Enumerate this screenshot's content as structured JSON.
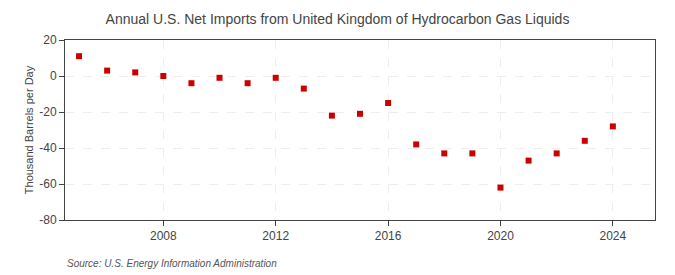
{
  "chart_data": {
    "type": "scatter",
    "title": "Annual U.S. Net Imports from United Kingdom of Hydrocarbon Gas Liquids",
    "ylabel": "Thousand Barrels per Day",
    "annotations": [
      "Source: U.S. Energy Information Administration"
    ],
    "x": [
      2005,
      2006,
      2007,
      2008,
      2009,
      2010,
      2011,
      2012,
      2013,
      2014,
      2015,
      2016,
      2017,
      2018,
      2019,
      2020,
      2021,
      2022,
      2023,
      2024
    ],
    "values": [
      11,
      3,
      2,
      0,
      -4,
      -1,
      -4,
      -1,
      -7,
      -22,
      -21,
      -15,
      -38,
      -43,
      -43,
      -62,
      -47,
      -43,
      -36,
      -28
    ],
    "color": "#cc0000",
    "marker": "square",
    "xlim": [
      2004.5,
      2025.5
    ],
    "xticks": [
      2008,
      2012,
      2016,
      2020,
      2024
    ],
    "ylim": [
      -80,
      20
    ],
    "yticks": [
      -80,
      -60,
      -40,
      -20,
      0,
      20
    ],
    "grid": true
  }
}
